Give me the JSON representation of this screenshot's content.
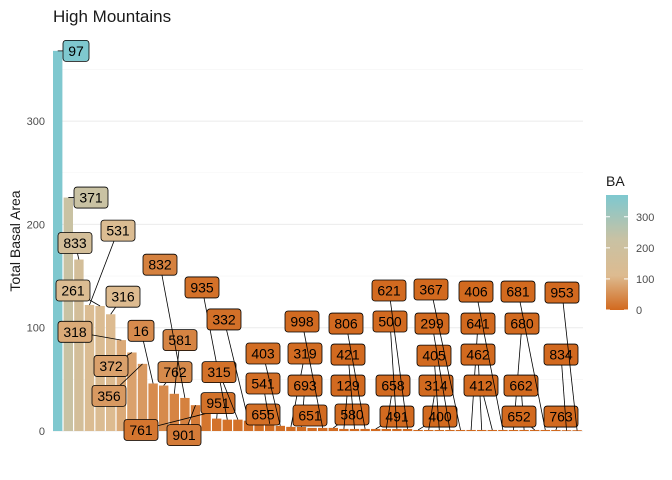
{
  "chart_data": {
    "type": "bar",
    "title": "High Mountains",
    "ylabel": "Total Basal Area",
    "xlabel": "",
    "ylim": [
      0,
      370
    ],
    "yticks": [
      0,
      100,
      200,
      300
    ],
    "grid": true,
    "legend": {
      "title": "BA",
      "ticks": [
        0,
        100,
        200,
        300
      ],
      "range": [
        0,
        370
      ],
      "colors": [
        "#D2691E",
        "#DDBB90",
        "#C8C2A4",
        "#7EC8D0"
      ],
      "placement": "right"
    },
    "categories": [
      "97",
      "371",
      "833",
      "531",
      "261",
      "316",
      "318",
      "372",
      "356",
      "16",
      "762",
      "581",
      "832",
      "901",
      "761",
      "951",
      "935",
      "315",
      "332",
      "655",
      "541",
      "403",
      "319",
      "693",
      "651",
      "998",
      "580",
      "129",
      "421",
      "806",
      "491",
      "658",
      "500",
      "621",
      "400",
      "314",
      "405",
      "299",
      "367",
      "641",
      "462",
      "412",
      "406",
      "680",
      "662",
      "652",
      "681",
      "763",
      "834",
      "953"
    ],
    "values": [
      368,
      226,
      166,
      122,
      121,
      113,
      88,
      76,
      65,
      46,
      44,
      36,
      32,
      25,
      17,
      12,
      11,
      11,
      10,
      8,
      7,
      5,
      4,
      4,
      3,
      3,
      3,
      2,
      2,
      2,
      2,
      2,
      2,
      2,
      1,
      1,
      1,
      1,
      1,
      1,
      1,
      1,
      1,
      1,
      1,
      1,
      1,
      1,
      0.5,
      0.5
    ],
    "label_positions": [
      [
        368
      ],
      [
        226
      ],
      [
        182
      ],
      [
        194
      ],
      [
        136
      ],
      [
        130
      ],
      [
        96
      ],
      [
        63
      ],
      [
        34
      ],
      [
        97
      ],
      [
        57
      ],
      [
        88
      ],
      [
        161
      ],
      [
        -4
      ],
      [
        1
      ],
      [
        27
      ],
      [
        139
      ],
      [
        57
      ],
      [
        108
      ],
      [
        16
      ],
      [
        46
      ],
      [
        75
      ],
      [
        75
      ],
      [
        44
      ],
      [
        15
      ],
      [
        106
      ],
      [
        16
      ],
      [
        44
      ],
      [
        74
      ],
      [
        104
      ],
      [
        14
      ],
      [
        44
      ],
      [
        106
      ],
      [
        136
      ],
      [
        14
      ],
      [
        44
      ],
      [
        73
      ],
      [
        104
      ],
      [
        137
      ],
      [
        104
      ],
      [
        74
      ],
      [
        44
      ],
      [
        135
      ],
      [
        104
      ],
      [
        44
      ],
      [
        14
      ],
      [
        135
      ],
      [
        14
      ],
      [
        74
      ],
      [
        134
      ]
    ]
  }
}
